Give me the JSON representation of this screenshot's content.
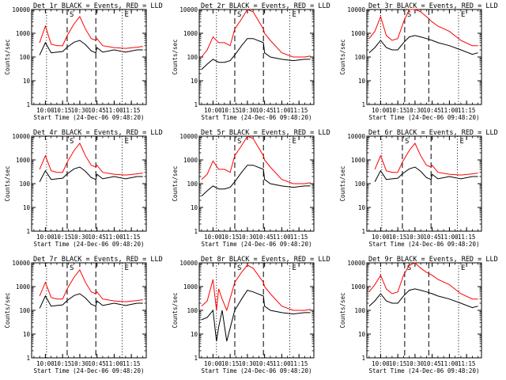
{
  "page": {
    "ylabel": "Counts/sec",
    "xlabel": "Start Time (24-Dec-06 09:48:20)",
    "xticks": [
      "10:00",
      "10:15",
      "10:30",
      "10:45",
      "11:00",
      "11:15"
    ],
    "yticks": [
      "1",
      "10",
      "100",
      "1000",
      "10000"
    ],
    "markers": [
      "S",
      "E"
    ],
    "colors": {
      "events": "#000000",
      "lld": "#ff0000",
      "axes": "#000000"
    }
  },
  "chart_data": [
    {
      "type": "line",
      "title": "Det 1r BLACK = Events, RED = LLD",
      "xlabel": "Start Time (24-Dec-06 09:48:20)",
      "ylabel": "Counts/sec",
      "xlim": [
        "09:48",
        "11:28"
      ],
      "ylim": [
        1,
        10000
      ],
      "yscale": "log",
      "x": [
        "09:55",
        "10:00",
        "10:05",
        "10:10",
        "10:15",
        "10:19",
        "10:25",
        "10:30",
        "10:35",
        "10:40",
        "10:44",
        "10:45",
        "10:50",
        "11:00",
        "11:10",
        "11:20",
        "11:25"
      ],
      "series": [
        {
          "name": "Events",
          "values": [
            120,
            400,
            150,
            160,
            170,
            260,
            420,
            500,
            330,
            180,
            150,
            250,
            160,
            200,
            160,
            200,
            200
          ]
        },
        {
          "name": "LLD",
          "values": [
            400,
            2000,
            350,
            300,
            300,
            800,
            2500,
            5000,
            1500,
            600,
            500,
            600,
            300,
            250,
            230,
            260,
            280
          ]
        }
      ],
      "vlines_dashed": [
        "10:19",
        "10:44"
      ],
      "vlines_dotted": [
        "10:01",
        "11:07"
      ]
    },
    {
      "type": "line",
      "title": "Det 2r BLACK = Events, RED = LLD",
      "xlabel": "Start Time (24-Dec-06 09:48:20)",
      "ylabel": "Counts/sec",
      "xlim": [
        "09:48",
        "11:28"
      ],
      "ylim": [
        1,
        10000
      ],
      "yscale": "log",
      "x": [
        "09:50",
        "09:55",
        "10:00",
        "10:05",
        "10:10",
        "10:15",
        "10:19",
        "10:25",
        "10:30",
        "10:35",
        "10:44",
        "10:45",
        "10:50",
        "11:00",
        "11:10",
        "11:20",
        "11:25"
      ],
      "series": [
        {
          "name": "Events",
          "values": [
            30,
            50,
            80,
            60,
            60,
            70,
            120,
            300,
            600,
            600,
            400,
            150,
            100,
            80,
            70,
            80,
            80
          ]
        },
        {
          "name": "LLD",
          "values": [
            100,
            200,
            700,
            400,
            400,
            300,
            1500,
            4000,
            10000,
            8000,
            1500,
            1000,
            500,
            150,
            100,
            100,
            110
          ]
        }
      ],
      "vlines_dashed": [
        "10:19",
        "10:44"
      ],
      "vlines_dotted": [
        "10:03",
        "11:07"
      ]
    },
    {
      "type": "line",
      "title": "Det 3r BLACK = Events, RED = LLD",
      "xlabel": "Start Time (24-Dec-06 09:48:20)",
      "ylabel": "Counts/sec",
      "xlim": [
        "09:48",
        "11:28"
      ],
      "ylim": [
        1,
        10000
      ],
      "yscale": "log",
      "x": [
        "09:50",
        "09:55",
        "10:00",
        "10:05",
        "10:10",
        "10:15",
        "10:20",
        "10:25",
        "10:30",
        "10:35",
        "10:40",
        "10:45",
        "10:50",
        "11:00",
        "11:10",
        "11:20",
        "11:25"
      ],
      "series": [
        {
          "name": "Events",
          "values": [
            150,
            250,
            500,
            250,
            200,
            200,
            400,
            700,
            800,
            700,
            600,
            500,
            400,
            300,
            200,
            130,
            150
          ]
        },
        {
          "name": "LLD",
          "values": [
            600,
            1200,
            5000,
            800,
            500,
            600,
            3000,
            10000,
            10000,
            8000,
            5000,
            3000,
            2000,
            1200,
            500,
            300,
            300
          ]
        }
      ],
      "vlines_dashed": [
        "10:21",
        "10:42"
      ],
      "vlines_dotted": [
        "10:00",
        "11:08"
      ]
    },
    {
      "type": "line",
      "title": "Det 4r BLACK = Events, RED = LLD",
      "xlabel": "Start Time (24-Dec-06 09:48:20)",
      "ylabel": "Counts/sec",
      "xlim": [
        "09:48",
        "11:28"
      ],
      "ylim": [
        1,
        10000
      ],
      "yscale": "log",
      "x": [
        "09:55",
        "10:00",
        "10:05",
        "10:10",
        "10:15",
        "10:19",
        "10:25",
        "10:30",
        "10:35",
        "10:40",
        "10:44",
        "10:45",
        "10:50",
        "11:00",
        "11:10",
        "11:20",
        "11:25"
      ],
      "series": [
        {
          "name": "Events",
          "values": [
            120,
            350,
            150,
            160,
            170,
            260,
            420,
            500,
            330,
            180,
            150,
            250,
            160,
            200,
            160,
            200,
            200
          ]
        },
        {
          "name": "LLD",
          "values": [
            400,
            1500,
            350,
            300,
            300,
            800,
            2500,
            5000,
            1500,
            600,
            500,
            600,
            300,
            250,
            230,
            260,
            280
          ]
        }
      ],
      "vlines_dashed": [
        "10:19",
        "10:44"
      ],
      "vlines_dotted": [
        "10:01",
        "11:07"
      ]
    },
    {
      "type": "line",
      "title": "Det 5r BLACK = Events, RED = LLD",
      "xlabel": "Start Time (24-Dec-06 09:48:20)",
      "ylabel": "Counts/sec",
      "xlim": [
        "09:48",
        "11:28"
      ],
      "ylim": [
        1,
        10000
      ],
      "yscale": "log",
      "x": [
        "09:50",
        "09:55",
        "10:00",
        "10:05",
        "10:10",
        "10:15",
        "10:19",
        "10:25",
        "10:30",
        "10:35",
        "10:44",
        "10:45",
        "10:50",
        "11:00",
        "11:10",
        "11:20",
        "11:25"
      ],
      "series": [
        {
          "name": "Events",
          "values": [
            30,
            50,
            80,
            60,
            60,
            70,
            120,
            300,
            600,
            600,
            400,
            150,
            100,
            80,
            70,
            80,
            80
          ]
        },
        {
          "name": "LLD",
          "values": [
            150,
            250,
            900,
            400,
            400,
            300,
            1500,
            4000,
            10000,
            8000,
            1500,
            1000,
            500,
            150,
            100,
            100,
            110
          ]
        }
      ],
      "vlines_dashed": [
        "10:19",
        "10:44"
      ],
      "vlines_dotted": [
        "10:03",
        "11:07"
      ]
    },
    {
      "type": "line",
      "title": "Det 6r BLACK = Events, RED = LLD",
      "xlabel": "Start Time (24-Dec-06 09:48:20)",
      "ylabel": "Counts/sec",
      "xlim": [
        "09:48",
        "11:28"
      ],
      "ylim": [
        1,
        10000
      ],
      "yscale": "log",
      "x": [
        "09:55",
        "10:00",
        "10:05",
        "10:10",
        "10:15",
        "10:19",
        "10:25",
        "10:30",
        "10:35",
        "10:40",
        "10:44",
        "10:45",
        "10:50",
        "11:00",
        "11:10",
        "11:20",
        "11:25"
      ],
      "series": [
        {
          "name": "Events",
          "values": [
            120,
            350,
            150,
            160,
            170,
            260,
            420,
            500,
            330,
            180,
            150,
            250,
            160,
            200,
            160,
            200,
            200
          ]
        },
        {
          "name": "LLD",
          "values": [
            400,
            1500,
            350,
            300,
            300,
            800,
            2500,
            5000,
            1500,
            600,
            500,
            600,
            300,
            250,
            230,
            260,
            280
          ]
        }
      ],
      "vlines_dashed": [
        "10:19",
        "10:44"
      ],
      "vlines_dotted": [
        "10:01",
        "11:07"
      ]
    },
    {
      "type": "line",
      "title": "Det 7r BLACK = Events, RED = LLD",
      "xlabel": "Start Time (24-Dec-06 09:48:20)",
      "ylabel": "Counts/sec",
      "xlim": [
        "09:48",
        "11:28"
      ],
      "ylim": [
        1,
        10000
      ],
      "yscale": "log",
      "x": [
        "09:55",
        "10:00",
        "10:05",
        "10:10",
        "10:15",
        "10:19",
        "10:25",
        "10:30",
        "10:35",
        "10:40",
        "10:44",
        "10:45",
        "10:50",
        "11:00",
        "11:10",
        "11:20",
        "11:25"
      ],
      "series": [
        {
          "name": "Events",
          "values": [
            120,
            400,
            150,
            160,
            170,
            260,
            420,
            500,
            330,
            180,
            150,
            250,
            160,
            200,
            160,
            200,
            200
          ]
        },
        {
          "name": "LLD",
          "values": [
            400,
            1500,
            350,
            300,
            300,
            800,
            2500,
            5000,
            1500,
            600,
            500,
            600,
            300,
            250,
            230,
            260,
            280
          ]
        }
      ],
      "vlines_dashed": [
        "10:19",
        "10:44"
      ],
      "vlines_dotted": [
        "10:01",
        "11:07"
      ]
    },
    {
      "type": "line",
      "title": "Det 8r BLACK = Events, RED = LLD",
      "xlabel": "Start Time (24-Dec-06 09:48:20)",
      "ylabel": "Counts/sec",
      "xlim": [
        "09:48",
        "11:28"
      ],
      "ylim": [
        1,
        10000
      ],
      "yscale": "log",
      "x": [
        "09:50",
        "09:55",
        "10:00",
        "10:03",
        "10:05",
        "10:08",
        "10:12",
        "10:19",
        "10:25",
        "10:30",
        "10:35",
        "10:44",
        "10:45",
        "10:50",
        "11:00",
        "11:10",
        "11:20",
        "11:25"
      ],
      "series": [
        {
          "name": "Events",
          "values": [
            40,
            50,
            100,
            5,
            20,
            100,
            5,
            100,
            300,
            700,
            600,
            400,
            150,
            100,
            80,
            70,
            80,
            80
          ]
        },
        {
          "name": "LLD",
          "values": [
            150,
            250,
            2000,
            100,
            800,
            300,
            100,
            1500,
            4000,
            8000,
            6000,
            1500,
            1000,
            500,
            150,
            100,
            100,
            110
          ]
        }
      ],
      "vlines_dashed": [
        "10:19",
        "10:44"
      ],
      "vlines_dotted": [
        "10:03",
        "11:07"
      ]
    },
    {
      "type": "line",
      "title": "Det 9r BLACK = Events, RED = LLD",
      "xlabel": "Start Time (24-Dec-06 09:48:20)",
      "ylabel": "Counts/sec",
      "xlim": [
        "09:48",
        "11:28"
      ],
      "ylim": [
        1,
        10000
      ],
      "yscale": "log",
      "x": [
        "09:50",
        "09:55",
        "10:00",
        "10:05",
        "10:10",
        "10:15",
        "10:20",
        "10:25",
        "10:30",
        "10:35",
        "10:40",
        "10:45",
        "10:50",
        "11:00",
        "11:10",
        "11:20",
        "11:25"
      ],
      "series": [
        {
          "name": "Events",
          "values": [
            150,
            250,
            500,
            250,
            200,
            200,
            400,
            700,
            800,
            700,
            600,
            500,
            400,
            300,
            200,
            130,
            150
          ]
        },
        {
          "name": "LLD",
          "values": [
            600,
            1200,
            3000,
            800,
            500,
            600,
            3000,
            8000,
            10000,
            6000,
            4000,
            3000,
            2000,
            1200,
            500,
            300,
            300
          ]
        }
      ],
      "vlines_dashed": [
        "10:21",
        "10:42"
      ],
      "vlines_dotted": [
        "10:00",
        "11:08"
      ]
    }
  ]
}
